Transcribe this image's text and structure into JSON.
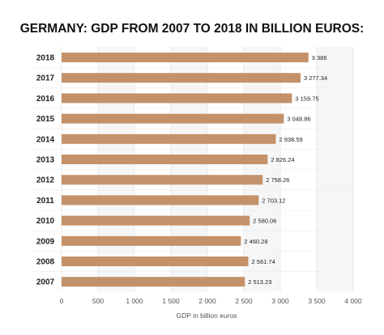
{
  "chart_data": {
    "type": "bar",
    "orientation": "horizontal",
    "title": "GERMANY: GDP FROM 2007 TO 2018 IN BILLION EUROS:",
    "xlabel": "GDP in billion euros",
    "ylabel": "",
    "xlim": [
      0,
      4000
    ],
    "xticks": [
      0,
      500,
      1000,
      1500,
      2000,
      2500,
      3000,
      3500,
      4000
    ],
    "xtick_labels": [
      "0",
      "500",
      "1 000",
      "1 500",
      "2 000",
      "2 500",
      "3 000",
      "3 500",
      "4 000"
    ],
    "grid": true,
    "bar_color": "#c4926a",
    "categories": [
      "2018",
      "2017",
      "2016",
      "2015",
      "2014",
      "2013",
      "2012",
      "2011",
      "2010",
      "2009",
      "2008",
      "2007"
    ],
    "values": [
      3386,
      3277.34,
      3159.75,
      3048.86,
      2938.59,
      2826.24,
      2758.26,
      2703.12,
      2580.06,
      2460.28,
      2561.74,
      2513.23
    ],
    "value_labels": [
      "3 386",
      "3 277.34",
      "3 159.75",
      "3 048.86",
      "2 938.59",
      "2 826.24",
      "2 758.26",
      "2 703.12",
      "2 580.06",
      "2 460.28",
      "2 561.74",
      "2 513.23"
    ]
  }
}
